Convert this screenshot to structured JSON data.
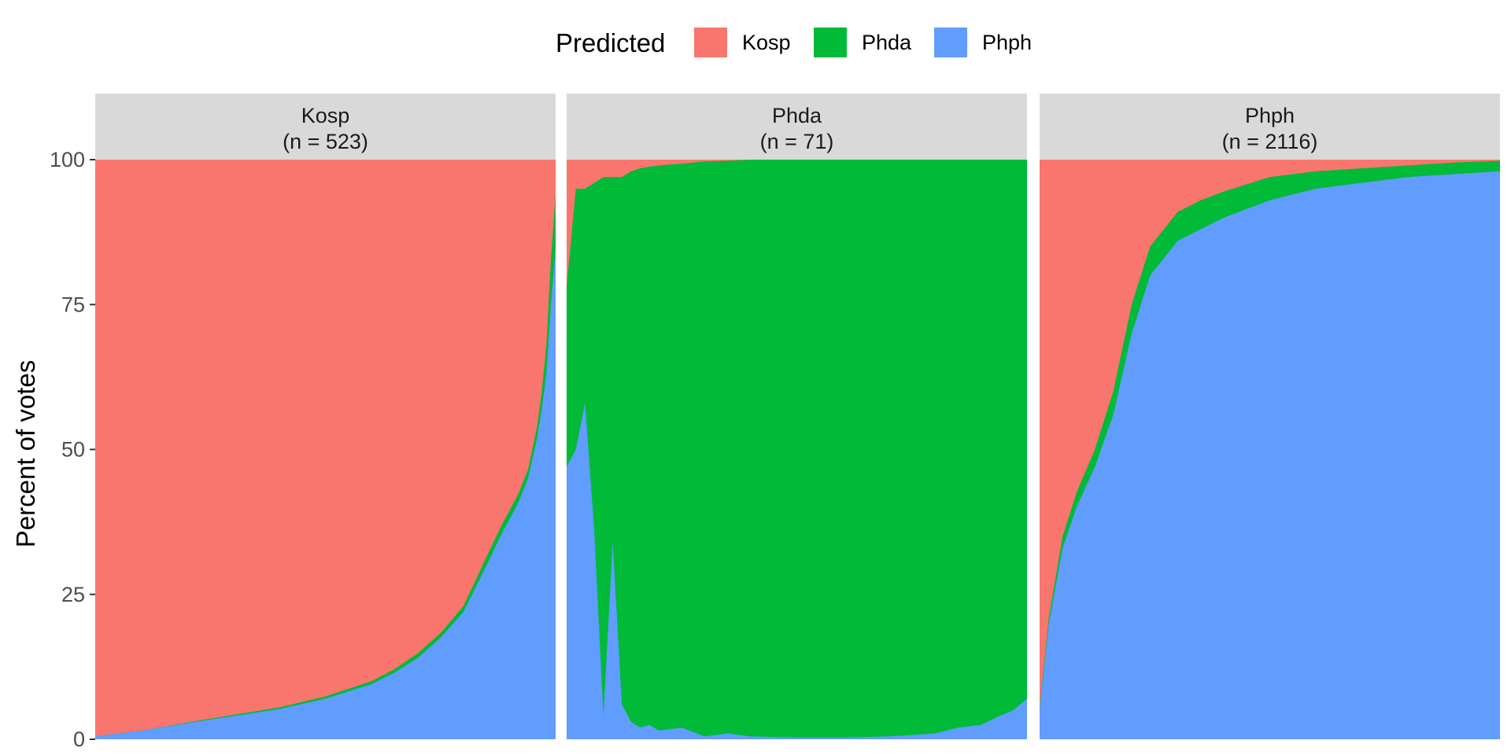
{
  "chart_data": {
    "type": "area",
    "title": "",
    "xlabel": "",
    "ylabel": "Percent of votes",
    "ylim": [
      0,
      100
    ],
    "yticks": [
      0,
      25,
      50,
      75,
      100
    ],
    "stack_order_bottom_to_top": [
      "Phph",
      "Phda",
      "Kosp"
    ],
    "legend": {
      "title": "Predicted",
      "position": "top",
      "entries": [
        {
          "name": "Kosp",
          "color": "#F8766D"
        },
        {
          "name": "Phda",
          "color": "#00BA38"
        },
        {
          "name": "Phph",
          "color": "#619CFF"
        }
      ]
    },
    "grid": false,
    "facets": [
      {
        "name": "Kosp",
        "n_label": "(n = 523)",
        "n": 523,
        "x_fraction": [
          0,
          0.1,
          0.2,
          0.3,
          0.4,
          0.5,
          0.6,
          0.65,
          0.7,
          0.75,
          0.8,
          0.85,
          0.88,
          0.9,
          0.92,
          0.94,
          0.96,
          0.97,
          0.98,
          0.99,
          1.0
        ],
        "series": [
          {
            "name": "Phph",
            "values": [
              0.5,
              1.5,
              2.8,
              4.0,
              5.2,
              7.0,
              9.5,
              11.5,
              14,
              17.5,
              22,
              30,
              35,
              38,
              41,
              45,
              52,
              57,
              63,
              75,
              85
            ]
          },
          {
            "name": "Phda",
            "values": [
              0,
              0,
              0.1,
              0.2,
              0.3,
              0.4,
              0.5,
              0.6,
              0.8,
              0.8,
              1.0,
              1.5,
              1.5,
              1.5,
              1.5,
              1.5,
              2,
              3,
              5,
              8,
              9
            ]
          }
        ]
      },
      {
        "name": "Phda",
        "n_label": "(n = 71)",
        "n": 71,
        "x_fraction": [
          0,
          0.02,
          0.04,
          0.06,
          0.08,
          0.1,
          0.12,
          0.14,
          0.16,
          0.18,
          0.2,
          0.25,
          0.3,
          0.35,
          0.4,
          0.5,
          0.6,
          0.7,
          0.8,
          0.85,
          0.9,
          0.94,
          0.97,
          1.0
        ],
        "series": [
          {
            "name": "Phph",
            "values": [
              47,
              50,
              58,
              36,
              4,
              34,
              6,
              3,
              2,
              2.5,
              1.5,
              2,
              0.5,
              1,
              0.5,
              0.3,
              0.3,
              0.5,
              1,
              2,
              2.5,
              4,
              5,
              7
            ]
          },
          {
            "name": "Phda",
            "values": [
              31,
              45,
              37,
              60,
              93,
              63,
              91,
              95,
              96.5,
              96.3,
              97.5,
              97.3,
              99.2,
              98.8,
              99.5,
              99.7,
              99.7,
              99.5,
              99,
              98,
              97.5,
              96,
              95,
              93
            ]
          }
        ]
      },
      {
        "name": "Phph",
        "n_label": "(n = 2116)",
        "n": 2116,
        "x_fraction": [
          0,
          0.02,
          0.05,
          0.08,
          0.12,
          0.16,
          0.2,
          0.24,
          0.28,
          0.3,
          0.35,
          0.4,
          0.5,
          0.6,
          0.7,
          0.8,
          0.9,
          1.0
        ],
        "series": [
          {
            "name": "Phph",
            "values": [
              5,
              20,
              33,
              40,
              47,
              56,
              70,
              80,
              84,
              86,
              88,
              90,
              93,
              95,
              96,
              97,
              97.5,
              98
            ]
          },
          {
            "name": "Phda",
            "values": [
              0.5,
              1,
              2,
              2.5,
              3,
              4,
              5,
              5,
              5,
              5,
              5,
              4.5,
              4,
              3,
              2.5,
              2,
              2,
              1.8
            ]
          }
        ]
      }
    ]
  }
}
